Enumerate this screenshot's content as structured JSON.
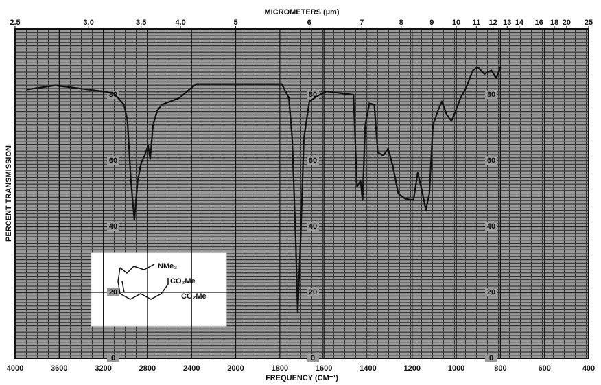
{
  "chart_data": {
    "type": "line",
    "title": "MICROMETERS (µm)",
    "x_label": "FREQUENCY (CM⁻¹)",
    "y_label": "PERCENT TRANSMISSION",
    "x": [
      3888,
      3637,
      3200,
      3106,
      3012,
      2981,
      2950,
      2919,
      2888,
      2856,
      2825,
      2794,
      2775,
      2750,
      2713,
      2669,
      2513,
      2419,
      2356,
      2013,
      1791,
      1759,
      1744,
      1728,
      1719,
      1706,
      1691,
      1666,
      1619,
      1588,
      1466,
      1450,
      1434,
      1425,
      1413,
      1394,
      1372,
      1356,
      1331,
      1309,
      1288,
      1263,
      1231,
      1194,
      1175,
      1156,
      1138,
      1122,
      1106,
      1084,
      1066,
      1044,
      1022,
      1003,
      981,
      956,
      925,
      903,
      872,
      841,
      819,
      800
    ],
    "series": [
      {
        "name": "Transmission",
        "color": "#111111",
        "values": [
          81.6,
          82.8,
          81,
          80.5,
          77,
          72,
          54,
          42,
          54,
          59.4,
          61.5,
          64.6,
          60.5,
          70.8,
          75,
          77,
          79,
          81.6,
          83.2,
          83.2,
          83.2,
          79,
          66.7,
          35.6,
          13.9,
          35.6,
          66.7,
          78,
          80,
          81,
          80,
          52,
          54,
          48,
          70.8,
          77.4,
          77,
          62.5,
          61.5,
          63.6,
          58.4,
          50,
          48.4,
          48,
          56.3,
          51,
          45,
          50,
          70.8,
          75,
          78,
          74,
          72,
          75,
          79,
          82,
          87.4,
          88.4,
          86.3,
          87.4,
          85,
          88.4
        ]
      }
    ],
    "xlim": [
      4000,
      400
    ],
    "xticks": [
      4000,
      3600,
      3200,
      2800,
      2400,
      2000,
      1800,
      1600,
      1400,
      1200,
      1000,
      800,
      600,
      400
    ],
    "x2lim": [
      2.5,
      25
    ],
    "x2ticks": [
      2.5,
      {
        "value": 3,
        "label": "3.0"
      },
      3.5,
      {
        "value": 4,
        "label": "4.0"
      },
      5,
      6,
      7,
      8,
      9,
      10,
      11,
      12,
      13,
      14,
      16,
      18,
      20,
      25
    ],
    "ylim": [
      0,
      100
    ],
    "yticks": [
      0,
      20,
      40,
      60,
      80
    ],
    "grid": true,
    "annotations": [
      "NMe₂",
      "CO₂Me",
      "CO₂Me"
    ]
  }
}
